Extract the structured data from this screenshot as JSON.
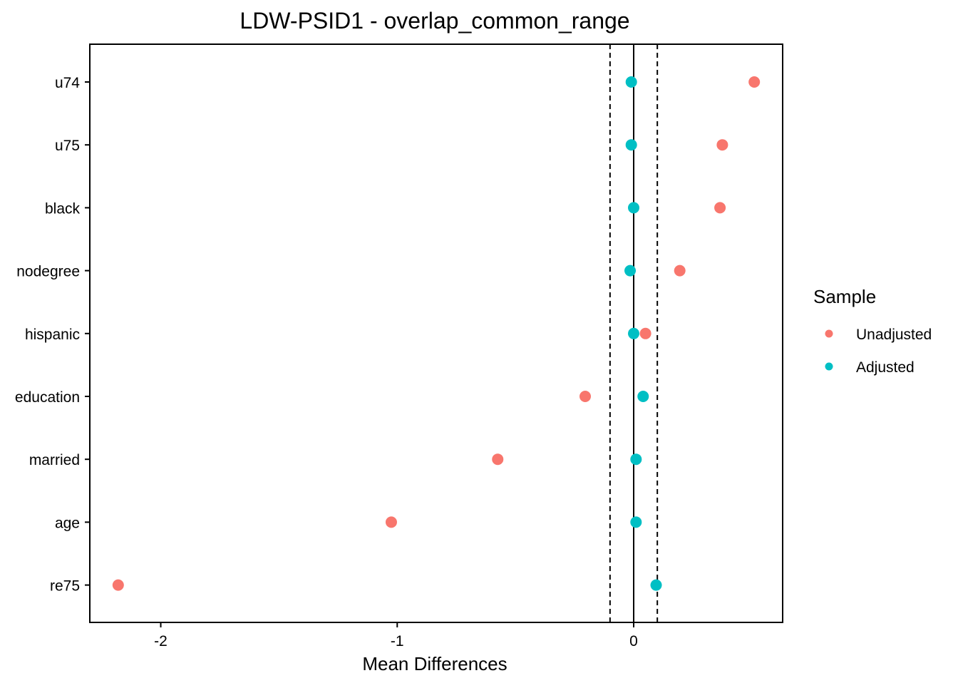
{
  "chart_data": {
    "type": "scatter",
    "title": "LDW-PSID1 - overlap_common_range",
    "xlabel": "Mean Differences",
    "ylabel": "",
    "xlim": [
      -2.3,
      0.63
    ],
    "x_ticks": [
      -2,
      -1,
      0
    ],
    "x_tick_labels": [
      "-2",
      "-1",
      "0"
    ],
    "categories": [
      "u74",
      "u75",
      "black",
      "nodegree",
      "hispanic",
      "education",
      "married",
      "age",
      "re75"
    ],
    "series": [
      {
        "name": "Unadjusted",
        "color": "#F8766D",
        "values": [
          0.51,
          0.375,
          0.365,
          0.195,
          0.05,
          -0.205,
          -0.575,
          -1.025,
          -2.18
        ]
      },
      {
        "name": "Adjusted",
        "color": "#00BFC4",
        "values": [
          -0.01,
          -0.01,
          0.0,
          -0.015,
          0.0,
          0.04,
          0.01,
          0.01,
          0.095
        ]
      }
    ],
    "reference_lines": [
      {
        "x": 0,
        "style": "solid"
      },
      {
        "x": -0.1,
        "style": "dashed"
      },
      {
        "x": 0.1,
        "style": "dashed"
      }
    ],
    "legend": {
      "title": "Sample",
      "placement": "right",
      "items": [
        "Unadjusted",
        "Adjusted"
      ]
    },
    "grid": false
  }
}
